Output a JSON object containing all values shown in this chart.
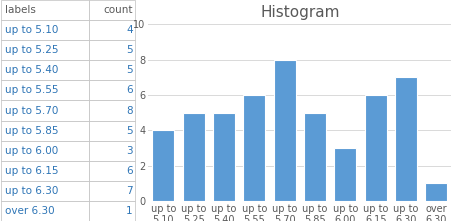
{
  "categories": [
    "up to\n5.10",
    "up to\n5.25",
    "up to\n5.40",
    "up to\n5.55",
    "up to\n5.70",
    "up to\n5.85",
    "up to\n6.00",
    "up to\n6.15",
    "up to\n6.30",
    "over\n6.30"
  ],
  "values": [
    4,
    5,
    5,
    6,
    8,
    5,
    3,
    6,
    7,
    1
  ],
  "bar_color": "#5B9BD5",
  "title": "Histogram",
  "title_color": "#595959",
  "ylim": [
    0,
    10
  ],
  "yticks": [
    0,
    2,
    4,
    6,
    8,
    10
  ],
  "title_fontsize": 11,
  "tick_fontsize": 7,
  "table_col1": [
    "labels",
    "up to 5.10",
    "up to 5.25",
    "up to 5.40",
    "up to 5.55",
    "up to 5.70",
    "up to 5.85",
    "up to 6.00",
    "up to 6.15",
    "up to 6.30",
    "over 6.30"
  ],
  "table_col2": [
    "count",
    "4",
    "5",
    "5",
    "6",
    "8",
    "5",
    "3",
    "6",
    "7",
    "1"
  ],
  "table_text_color": "#2E75B6",
  "table_header_color": "#595959",
  "grid_color": "#D9D9D9",
  "border_color": "#BFBFBF",
  "table_font_size": 7.5
}
